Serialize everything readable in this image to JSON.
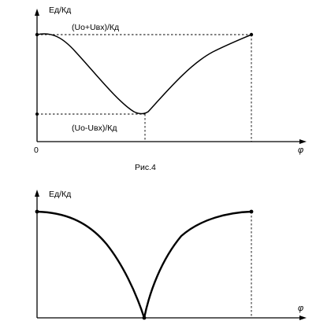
{
  "figure_top": {
    "y_axis_label": "Ед/Кд",
    "x_axis_label": "φ",
    "origin_label": "0",
    "max_label": "(Uo+Uвх)/Кд",
    "min_label": "(Uo-Uвх)/Кд",
    "caption": "Рис.4"
  },
  "figure_bottom": {
    "y_axis_label": "Ед/Кд",
    "x_axis_label": "φ"
  }
}
